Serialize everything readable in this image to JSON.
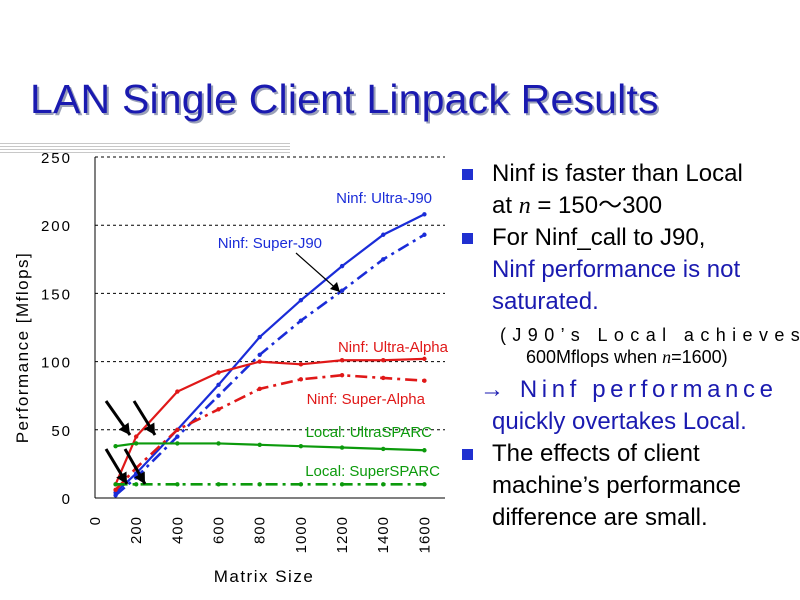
{
  "slide": {
    "title": "LAN Single Client Linpack Results",
    "bullets": [
      {
        "l1": "Ninf is faster than Local",
        "l2a": "at ",
        "l2n": "n",
        "l2b": " = 150～300"
      },
      {
        "l1": "For Ninf_call to J90,",
        "l2": "Ninf performance is not",
        "l3": "saturated."
      }
    ],
    "note": {
      "l1": "(J90’s Local achieves",
      "l2a": "600Mflops when ",
      "l2n": "n",
      "l2b": "=1600)"
    },
    "arrow_line": {
      "l1": "→ Ninf performance",
      "l2": "quickly overtakes Local."
    },
    "bullet3": {
      "l1": "The effects of client",
      "l2": "machine’s performance",
      "l3": "difference are small."
    }
  },
  "chart_data": {
    "type": "line",
    "xlabel": "Matrix Size",
    "ylabel": "Performance [Mflops]",
    "xlim": [
      0,
      1700
    ],
    "ylim": [
      0,
      250
    ],
    "x_ticks": [
      0,
      200,
      400,
      600,
      800,
      1000,
      1200,
      1400,
      1600
    ],
    "y_ticks": [
      0,
      50,
      100,
      150,
      200,
      250
    ],
    "grid": "horizontal dashed",
    "series": [
      {
        "name": "Ninf: Ultra-J90",
        "color": "#1a2cd8",
        "dash": "solid",
        "x": [
          100,
          200,
          400,
          600,
          800,
          1000,
          1200,
          1400,
          1600
        ],
        "y": [
          4,
          18,
          50,
          83,
          118,
          145,
          170,
          193,
          208
        ]
      },
      {
        "name": "Ninf: Super-J90",
        "color": "#1a2cd8",
        "dash": "dashdot",
        "x": [
          100,
          200,
          400,
          600,
          800,
          1000,
          1200,
          1400,
          1600
        ],
        "y": [
          2,
          15,
          45,
          75,
          105,
          130,
          152,
          175,
          193
        ]
      },
      {
        "name": "Ninf: Ultra-Alpha",
        "color": "#e01818",
        "dash": "solid",
        "x": [
          100,
          200,
          400,
          600,
          800,
          1000,
          1200,
          1400,
          1600
        ],
        "y": [
          10,
          45,
          78,
          92,
          100,
          98,
          101,
          101,
          102
        ]
      },
      {
        "name": "Ninf: Super-Alpha",
        "color": "#e01818",
        "dash": "dashdot",
        "x": [
          100,
          200,
          400,
          600,
          800,
          1000,
          1200,
          1400,
          1600
        ],
        "y": [
          6,
          22,
          50,
          65,
          80,
          87,
          90,
          88,
          86
        ]
      },
      {
        "name": "Local: UltraSPARC",
        "color": "#0c9a0c",
        "dash": "solid",
        "x": [
          100,
          200,
          400,
          600,
          800,
          1000,
          1200,
          1400,
          1600
        ],
        "y": [
          38,
          40,
          40,
          40,
          39,
          38,
          37,
          36,
          35
        ]
      },
      {
        "name": "Local: SuperSPARC",
        "color": "#0c9a0c",
        "dash": "dashdot",
        "x": [
          100,
          200,
          400,
          600,
          800,
          1000,
          1200,
          1400,
          1600
        ],
        "y": [
          10,
          10,
          10,
          10,
          10,
          10,
          10,
          10,
          10
        ]
      }
    ],
    "annotations": [
      "Ninf: Ultra-J90",
      "Ninf: Super-J90",
      "Ninf: Ultra-Alpha",
      "Ninf: Super-Alpha",
      "Local: UltraSPARC",
      "Local: SuperSPARC"
    ]
  }
}
